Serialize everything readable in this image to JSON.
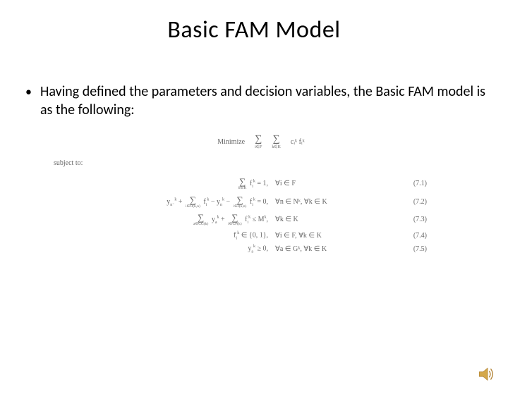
{
  "title": "Basic FAM Model",
  "bullet": "Having defined the parameters and decision variables, the Basic FAM model is as the following:",
  "objective": {
    "label": "Minimize",
    "sum1_sub": "i∈F",
    "sum2_sub": "k∈K",
    "term": "cᵢᵏ fᵢᵏ"
  },
  "subject_to": "subject to:",
  "constraints": [
    {
      "lhs_html": "<span class='sigma-inline'><span class='ssig'>∑</span><span class='ssub'>k∈K</span></span> f<sub>i</sub><sup>k</sup> = 1,",
      "cond": "∀i ∈ F",
      "num": "(7.1)"
    },
    {
      "lhs_html": "y<sub>n⁻</sub><sup>k</sup> + <span class='sigma-inline'><span class='ssig'>∑</span><span class='ssub'>i∈O(k,n)</span></span> f<sub>i</sub><sup>k</sup> − y<sub>n</sub><sup>k</sup> − <span class='sigma-inline'><span class='ssig'>∑</span><span class='ssub'>i∈I(k,n)</span></span> f<sub>i</sub><sup>k</sup> = 0,",
      "cond": "∀n ∈ Nᵏ, ∀k ∈ K",
      "num": "(7.2)"
    },
    {
      "lhs_html": "<span class='sigma-inline'><span class='ssig'>∑</span><span class='ssub'>a∈CG(k)</span></span> y<sub>a</sub><sup>k</sup> + <span class='sigma-inline'><span class='ssig'>∑</span><span class='ssub'>i∈CF(k)</span></span> f<sub>i</sub><sup>k</sup> ≤ M<sup>k</sup>,",
      "cond": "∀k ∈ K",
      "num": "(7.3)"
    },
    {
      "lhs_html": "f<sub>i</sub><sup>k</sup> ∈ {0, 1},",
      "cond": "∀i ∈ F, ∀k ∈ K",
      "num": "(7.4)"
    },
    {
      "lhs_html": "y<sub>a</sub><sup>k</sup> ≥ 0,",
      "cond": "∀a ∈ Gᵏ, ∀k ∈ K",
      "num": "(7.5)"
    }
  ],
  "colors": {
    "bg": "#ffffff",
    "text": "#000000",
    "math": "#666666"
  }
}
